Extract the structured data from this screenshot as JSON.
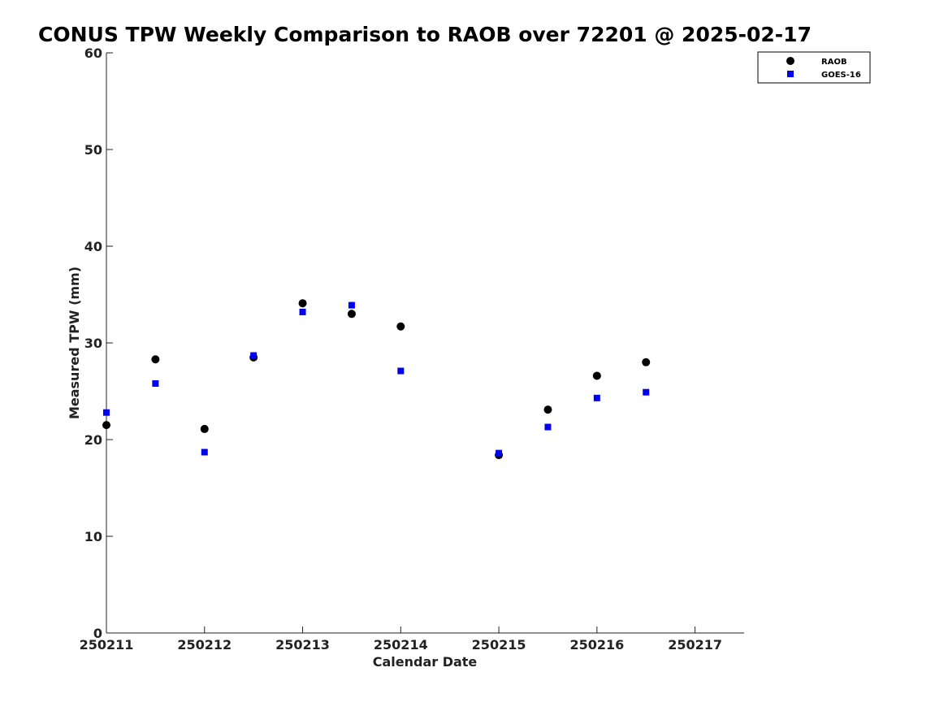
{
  "chart_data": {
    "type": "scatter",
    "title": "CONUS TPW Weekly Comparison to RAOB over 72201 @ 2025-02-17",
    "xlabel": "Calendar Date",
    "ylabel": "Measured TPW (mm)",
    "xlim": [
      250211,
      250217.5
    ],
    "ylim": [
      0,
      60
    ],
    "x_ticks": [
      250211,
      250212,
      250213,
      250214,
      250215,
      250216,
      250217
    ],
    "x_tick_labels": [
      "250211",
      "250212",
      "250213",
      "250214",
      "250215",
      "250216",
      "250217"
    ],
    "y_ticks": [
      0,
      10,
      20,
      30,
      40,
      50,
      60
    ],
    "y_tick_labels": [
      "0",
      "10",
      "20",
      "30",
      "40",
      "50",
      "60"
    ],
    "grid": false,
    "legend_position": "top-right",
    "series": [
      {
        "name": "RAOB",
        "marker": "circle",
        "color": "#000000",
        "x": [
          250211,
          250211.5,
          250212,
          250212.5,
          250213,
          250213.5,
          250214,
          250215,
          250215.5,
          250216,
          250216.5
        ],
        "y": [
          21.5,
          28.3,
          21.1,
          28.5,
          34.1,
          33.0,
          31.7,
          18.4,
          23.1,
          26.6,
          28.0
        ]
      },
      {
        "name": "GOES-16",
        "marker": "square",
        "color": "#0000ee",
        "x": [
          250211,
          250211.5,
          250212,
          250212.5,
          250213,
          250213.5,
          250214,
          250215,
          250215.5,
          250216,
          250216.5
        ],
        "y": [
          22.8,
          25.8,
          18.7,
          28.7,
          33.2,
          33.9,
          27.1,
          18.6,
          21.3,
          24.3,
          24.9
        ]
      }
    ]
  }
}
